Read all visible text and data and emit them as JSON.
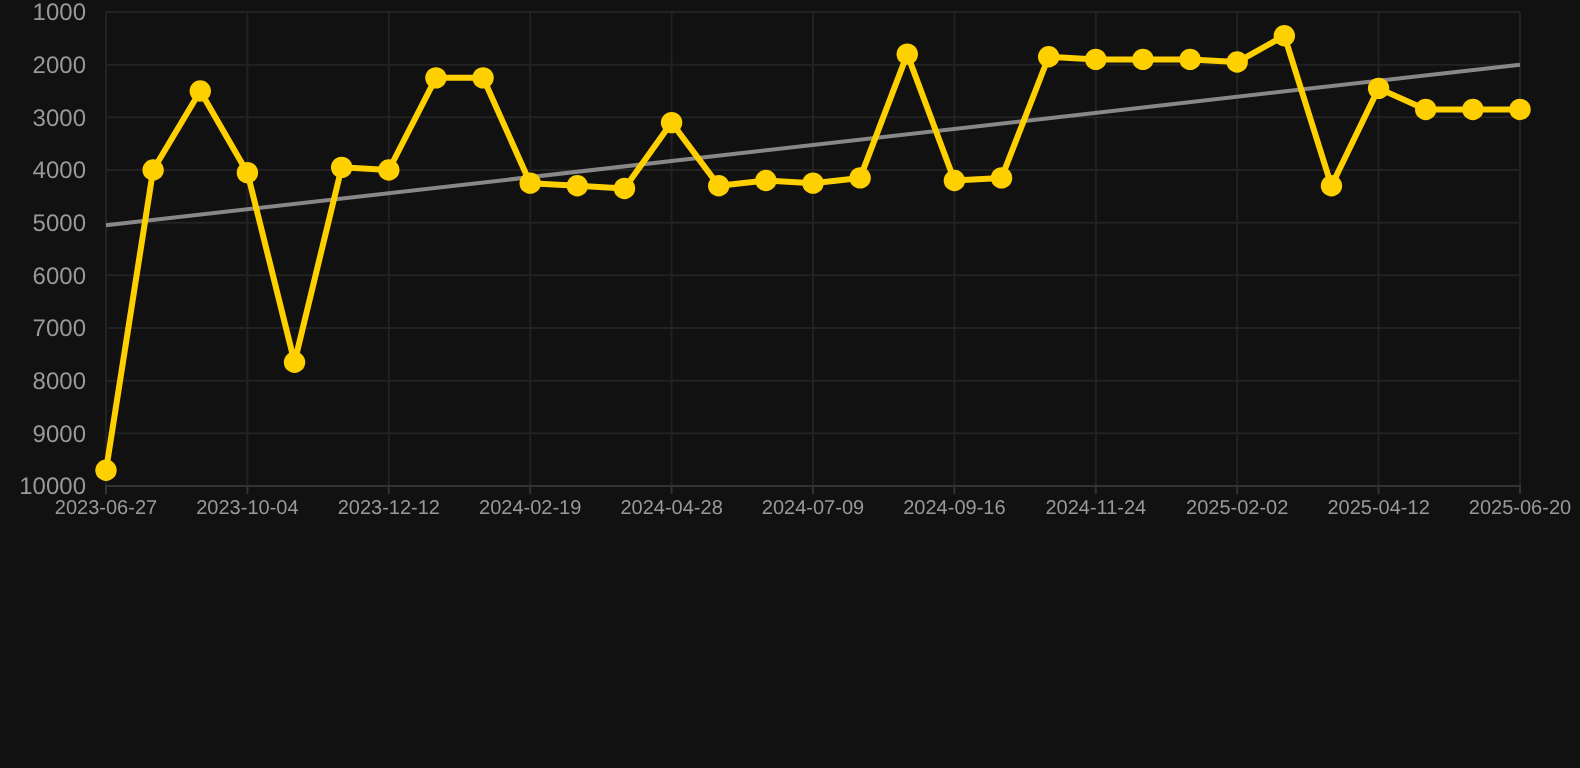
{
  "chart_data": {
    "type": "line",
    "categories": [
      "2023-06-27",
      null,
      null,
      "2023-10-04",
      null,
      null,
      "2023-12-12",
      null,
      null,
      "2024-02-19",
      null,
      null,
      "2024-04-28",
      null,
      null,
      "2024-07-09",
      null,
      null,
      "2024-09-16",
      null,
      null,
      "2024-11-24",
      null,
      null,
      "2025-02-02",
      null,
      null,
      "2025-04-12",
      null,
      null,
      "2025-06-20"
    ],
    "series": [
      {
        "color": "#ffd000",
        "marker": "circle",
        "values": [
          9700,
          4000,
          2500,
          4050,
          7650,
          3950,
          4000,
          2250,
          2250,
          4250,
          4300,
          4350,
          3100,
          4300,
          4200,
          4250,
          4150,
          1800,
          4200,
          4150,
          1850,
          1900,
          1900,
          1900,
          1950,
          1450,
          4300,
          2450,
          2850,
          2850,
          2850
        ]
      },
      {
        "color": "#888888",
        "marker": "none",
        "values": [
          5050,
          null,
          null,
          null,
          null,
          null,
          null,
          null,
          null,
          null,
          null,
          null,
          null,
          null,
          null,
          null,
          null,
          null,
          null,
          null,
          null,
          null,
          null,
          null,
          null,
          null,
          null,
          null,
          null,
          null,
          2000
        ]
      }
    ],
    "ylim": [
      10000,
      1000
    ],
    "yticks": [
      1000,
      2000,
      3000,
      4000,
      5000,
      6000,
      7000,
      8000,
      9000,
      10000
    ],
    "grid": true
  }
}
